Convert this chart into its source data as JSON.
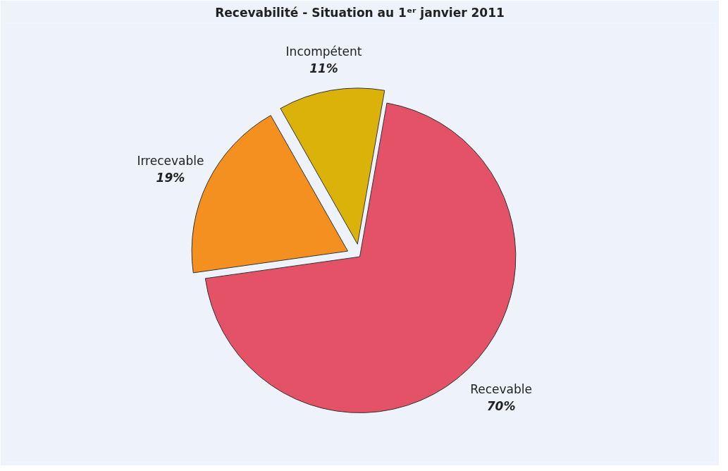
{
  "chart_data": {
    "type": "pie",
    "title": "Recevabilité - Situation au 1ᵉʳ janvier 2011",
    "categories": [
      "Recevable",
      "Irrecevable",
      "Incompétent"
    ],
    "values": [
      70,
      19,
      11
    ],
    "colors": [
      "#e35266",
      "#f39020",
      "#dbb20a"
    ],
    "value_labels": [
      "70%",
      "19%",
      "11%"
    ]
  }
}
